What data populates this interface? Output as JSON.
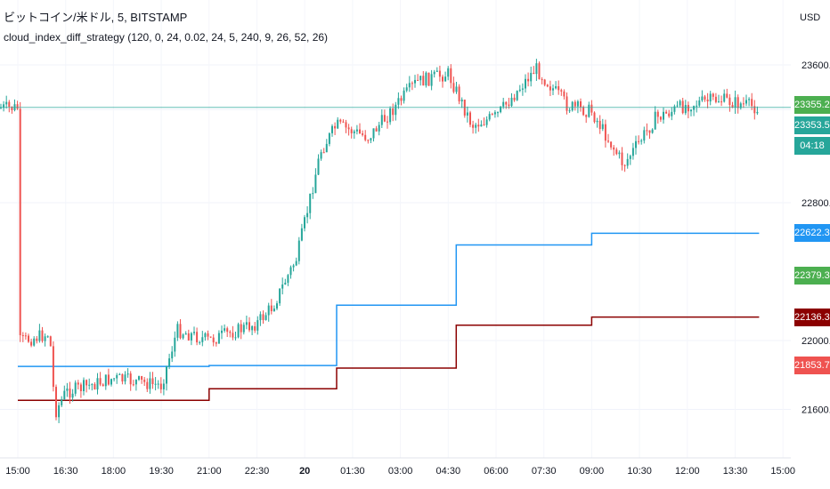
{
  "header": {
    "symbol_line": "ビットコイン/米ドル, 5, BITSTAMP",
    "indicator_line": "cloud_index_diff_strategy (120, 0, 24, 0.02, 24, 5, 240, 9, 26, 52, 26)",
    "currency": "USD"
  },
  "price_axis": {
    "ticks": [
      {
        "label": "23600.00",
        "value": 23600
      },
      {
        "label": "23340.39",
        "value": 23340.39
      },
      {
        "label": "22800.00",
        "value": 22800
      },
      {
        "label": "22000.00",
        "value": 22000
      },
      {
        "label": "21600.00",
        "value": 21600
      }
    ],
    "tags": [
      {
        "label": "23355.23",
        "color": "#4caf50",
        "value": 23355.23
      },
      {
        "label": "23353.53",
        "color": "#26a69a",
        "value": 23353.53
      },
      {
        "label": "04:18",
        "color": "#26a69a",
        "value": null
      },
      {
        "label": "22622.34",
        "color": "#2196f3",
        "value": 22622.34
      },
      {
        "label": "22379.34",
        "color": "#4caf50",
        "value": 22379.34
      },
      {
        "label": "22136.34",
        "color": "#8b0000",
        "value": 22136.34
      },
      {
        "label": "21853.78",
        "color": "#ef5350",
        "value": 21853.78
      }
    ]
  },
  "time_axis": {
    "labels": [
      "15:00",
      "16:30",
      "18:00",
      "19:30",
      "21:00",
      "22:30",
      "20",
      "01:30",
      "03:00",
      "04:30",
      "06:00",
      "07:30",
      "09:00",
      "10:30",
      "12:00",
      "13:30",
      "15:00"
    ],
    "bold": [
      "20"
    ]
  },
  "chart_data": {
    "type": "candlestick",
    "ylim": [
      21400,
      24000
    ],
    "grid": true,
    "colors": {
      "up": "#26a69a",
      "down": "#ef5350",
      "blue_line": "#2196f3",
      "red_line": "#8b0000"
    },
    "close_path": [
      {
        "t": "15:00",
        "y": 21990
      },
      {
        "t": "16:00",
        "y": 22040
      },
      {
        "t": "16:10",
        "y": 21580
      },
      {
        "t": "16:30",
        "y": 21700
      },
      {
        "t": "18:00",
        "y": 21780
      },
      {
        "t": "19:30",
        "y": 21740
      },
      {
        "t": "20:00",
        "y": 22060
      },
      {
        "t": "21:00",
        "y": 22000
      },
      {
        "t": "22:30",
        "y": 22100
      },
      {
        "t": "23:00",
        "y": 22200
      },
      {
        "t": "23:45",
        "y": 22480
      },
      {
        "t": "00:30",
        "y": 23100
      },
      {
        "t": "01:00",
        "y": 23250
      },
      {
        "t": "02:00",
        "y": 23180
      },
      {
        "t": "03:30",
        "y": 23500
      },
      {
        "t": "04:30",
        "y": 23550
      },
      {
        "t": "05:15",
        "y": 23250
      },
      {
        "t": "06:00",
        "y": 23300
      },
      {
        "t": "07:15",
        "y": 23580
      },
      {
        "t": "08:15",
        "y": 23360
      },
      {
        "t": "09:00",
        "y": 23330
      },
      {
        "t": "10:00",
        "y": 23020
      },
      {
        "t": "11:00",
        "y": 23290
      },
      {
        "t": "12:00",
        "y": 23370
      },
      {
        "t": "13:00",
        "y": 23400
      },
      {
        "t": "14:15",
        "y": 23350
      }
    ],
    "blue_line": [
      {
        "t_start": "15:00",
        "t_end": "21:00",
        "y": 21850
      },
      {
        "t_start": "21:00",
        "t_end": "01:00",
        "y": 21855
      },
      {
        "t_start": "01:00",
        "t_end": "04:45",
        "y": 22205
      },
      {
        "t_start": "04:45",
        "t_end": "09:00",
        "y": 22555
      },
      {
        "t_start": "09:00",
        "t_end": "14:15",
        "y": 22622.34
      }
    ],
    "red_line": [
      {
        "t_start": "15:00",
        "t_end": "21:00",
        "y": 21653
      },
      {
        "t_start": "21:00",
        "t_end": "01:00",
        "y": 21720
      },
      {
        "t_start": "01:00",
        "t_end": "04:45",
        "y": 21840
      },
      {
        "t_start": "04:45",
        "t_end": "09:00",
        "y": 22089
      },
      {
        "t_start": "09:00",
        "t_end": "14:15",
        "y": 22136.34
      }
    ],
    "last_price": 23353.53
  }
}
